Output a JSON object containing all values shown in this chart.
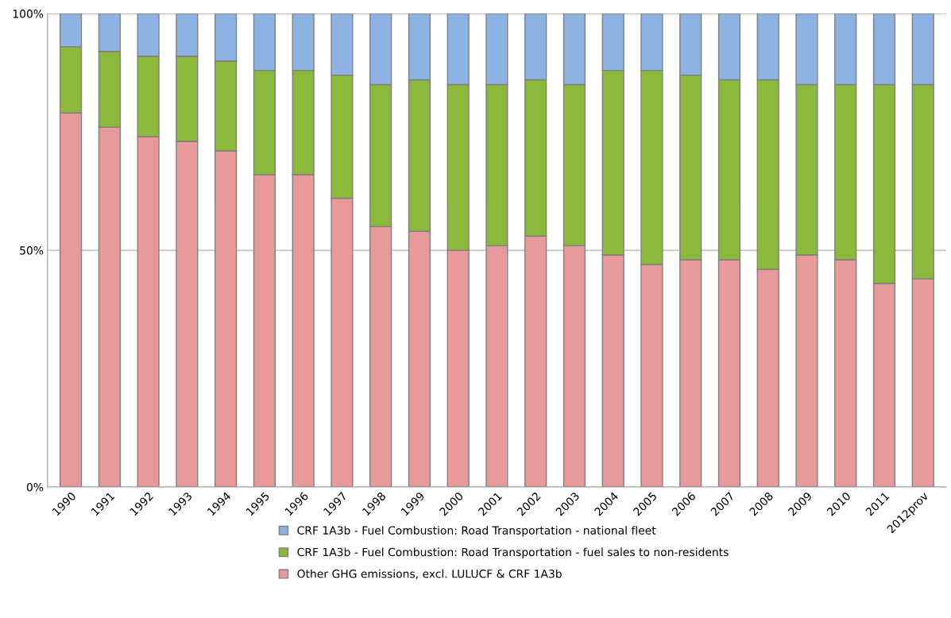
{
  "chart_data": {
    "type": "bar",
    "stacked": true,
    "categories": [
      "1990",
      "1991",
      "1992",
      "1993",
      "1994",
      "1995",
      "1996",
      "1997",
      "1998",
      "1999",
      "2000",
      "2001",
      "2002",
      "2003",
      "2004",
      "2005",
      "2006",
      "2007",
      "2008",
      "2009",
      "2010",
      "2011",
      "2012prov"
    ],
    "series": [
      {
        "name": "Other GHG emissions, excl. LULUCF & CRF 1A3b",
        "color": "#e89a9a",
        "values": [
          79,
          76,
          74,
          73,
          71,
          66,
          66,
          61,
          55,
          54,
          50,
          51,
          53,
          51,
          49,
          47,
          48,
          48,
          46,
          49,
          48,
          43,
          44
        ]
      },
      {
        "name": "CRF 1A3b - Fuel Combustion: Road Transportation - fuel sales to non-residents",
        "color": "#8cb83c",
        "values": [
          14,
          16,
          17,
          18,
          19,
          22,
          22,
          26,
          30,
          32,
          35,
          34,
          33,
          34,
          39,
          41,
          39,
          38,
          40,
          36,
          37,
          42,
          41
        ]
      },
      {
        "name": "CRF 1A3b - Fuel Combustion: Road Transportation - national fleet",
        "color": "#8db3e2",
        "values": [
          7,
          8,
          9,
          9,
          10,
          12,
          12,
          13,
          15,
          14,
          15,
          15,
          14,
          15,
          12,
          12,
          13,
          14,
          14,
          15,
          15,
          15,
          15
        ]
      }
    ],
    "ylim": [
      0,
      100
    ],
    "yticks": [
      {
        "value": 0,
        "label": "0%"
      },
      {
        "value": 50,
        "label": "50%"
      },
      {
        "value": 100,
        "label": "100%"
      }
    ],
    "grid": "y",
    "legend": "bottom"
  }
}
